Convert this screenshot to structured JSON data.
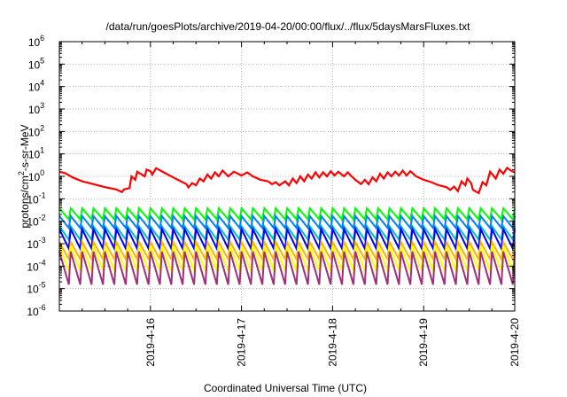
{
  "chart_data": {
    "type": "line",
    "title": "/data/run/goesPlots/archive/2019-04-20/00:00/flux/../flux/5daysMarsFluxes.txt",
    "xlabel": "Coordinated Universal Time (UTC)",
    "ylabel": {
      "prefix": "protons/cm",
      "sup": "2",
      "suffix": "-s-sr-MeV"
    },
    "yscale": "log",
    "ylim": [
      1e-06,
      1000000.0
    ],
    "xlim": [
      "2019-04-15T00:00",
      "2019-04-20T00:00"
    ],
    "x_ticks": [
      "2019-4-16",
      "2019-4-17",
      "2019-4-18",
      "2019-4-19",
      "2019-4-20"
    ],
    "y_ticks": [
      {
        "base": "10",
        "exp": "-6"
      },
      {
        "base": "10",
        "exp": "-5"
      },
      {
        "base": "10",
        "exp": "-4"
      },
      {
        "base": "10",
        "exp": "-3"
      },
      {
        "base": "10",
        "exp": "-2"
      },
      {
        "base": "10",
        "exp": "-1"
      },
      {
        "base": "10",
        "exp": "0"
      },
      {
        "base": "10",
        "exp": "1"
      },
      {
        "base": "10",
        "exp": "2"
      },
      {
        "base": "10",
        "exp": "3"
      },
      {
        "base": "10",
        "exp": "4"
      },
      {
        "base": "10",
        "exp": "5"
      },
      {
        "base": "10",
        "exp": "6"
      }
    ],
    "grid": true,
    "legend": "none",
    "series": [
      {
        "color": "#ff0000",
        "points": [
          [
            "2019-04-15T00:00",
            1.6
          ],
          [
            "2019-04-15T01:30",
            1.4
          ],
          [
            "2019-04-15T03:30",
            0.9
          ],
          [
            "2019-04-15T06:00",
            0.6
          ],
          [
            "2019-04-15T09:00",
            0.45
          ],
          [
            "2019-04-15T12:00",
            0.33
          ],
          [
            "2019-04-15T15:00",
            0.26
          ],
          [
            "2019-04-15T16:30",
            0.2
          ],
          [
            "2019-04-15T17:00",
            0.26
          ],
          [
            "2019-04-15T18:30",
            0.3
          ],
          [
            "2019-04-15T19:00",
            1.0
          ],
          [
            "2019-04-15T20:00",
            0.7
          ],
          [
            "2019-04-15T20:30",
            1.6
          ],
          [
            "2019-04-15T22:30",
            1.0
          ],
          [
            "2019-04-15T23:00",
            2.0
          ],
          [
            "2019-04-16T00:00",
            1.7
          ],
          [
            "2019-04-16T00:30",
            1.2
          ],
          [
            "2019-04-16T01:30",
            2.3
          ],
          [
            "2019-04-16T03:30",
            1.5
          ],
          [
            "2019-04-16T06:00",
            0.9
          ],
          [
            "2019-04-16T08:00",
            0.6
          ],
          [
            "2019-04-16T09:30",
            0.45
          ],
          [
            "2019-04-16T10:00",
            0.32
          ],
          [
            "2019-04-16T11:00",
            0.5
          ],
          [
            "2019-04-16T12:00",
            0.4
          ],
          [
            "2019-04-16T13:00",
            0.8
          ],
          [
            "2019-04-16T14:00",
            0.6
          ],
          [
            "2019-04-16T15:00",
            1.2
          ],
          [
            "2019-04-16T16:00",
            0.8
          ],
          [
            "2019-04-16T17:00",
            1.5
          ],
          [
            "2019-04-16T18:00",
            1.0
          ],
          [
            "2019-04-16T19:00",
            1.8
          ],
          [
            "2019-04-16T20:30",
            1.0
          ],
          [
            "2019-04-16T22:00",
            1.6
          ],
          [
            "2019-04-17T00:00",
            1.1
          ],
          [
            "2019-04-17T01:30",
            1.5
          ],
          [
            "2019-04-17T03:00",
            1.0
          ],
          [
            "2019-04-17T05:00",
            0.7
          ],
          [
            "2019-04-17T07:00",
            0.6
          ],
          [
            "2019-04-17T08:00",
            0.45
          ],
          [
            "2019-04-17T09:00",
            0.55
          ],
          [
            "2019-04-17T10:00",
            0.4
          ],
          [
            "2019-04-17T11:30",
            0.6
          ],
          [
            "2019-04-17T12:30",
            0.4
          ],
          [
            "2019-04-17T13:30",
            0.8
          ],
          [
            "2019-04-17T14:30",
            0.5
          ],
          [
            "2019-04-17T15:30",
            1.0
          ],
          [
            "2019-04-17T16:30",
            0.6
          ],
          [
            "2019-04-17T17:30",
            1.2
          ],
          [
            "2019-04-17T18:30",
            0.8
          ],
          [
            "2019-04-17T19:30",
            1.5
          ],
          [
            "2019-04-17T20:30",
            0.9
          ],
          [
            "2019-04-17T21:30",
            1.5
          ],
          [
            "2019-04-17T22:30",
            1.0
          ],
          [
            "2019-04-17T23:30",
            1.7
          ],
          [
            "2019-04-18T00:30",
            1.1
          ],
          [
            "2019-04-18T01:30",
            1.6
          ],
          [
            "2019-04-18T03:00",
            1.0
          ],
          [
            "2019-04-18T04:00",
            1.5
          ],
          [
            "2019-04-18T05:00",
            1.0
          ],
          [
            "2019-04-18T06:00",
            0.7
          ],
          [
            "2019-04-18T07:30",
            0.45
          ],
          [
            "2019-04-18T08:30",
            0.7
          ],
          [
            "2019-04-18T09:30",
            0.45
          ],
          [
            "2019-04-18T10:30",
            0.9
          ],
          [
            "2019-04-18T11:30",
            0.6
          ],
          [
            "2019-04-18T12:30",
            1.3
          ],
          [
            "2019-04-18T13:30",
            0.8
          ],
          [
            "2019-04-18T14:30",
            1.5
          ],
          [
            "2019-04-18T15:30",
            1.0
          ],
          [
            "2019-04-18T16:30",
            1.6
          ],
          [
            "2019-04-18T17:30",
            1.1
          ],
          [
            "2019-04-18T18:30",
            1.8
          ],
          [
            "2019-04-18T19:30",
            1.1
          ],
          [
            "2019-04-18T20:30",
            1.7
          ],
          [
            "2019-04-18T22:00",
            1.0
          ],
          [
            "2019-04-19T00:00",
            0.7
          ],
          [
            "2019-04-19T02:00",
            0.55
          ],
          [
            "2019-04-19T04:00",
            0.4
          ],
          [
            "2019-04-19T06:00",
            0.33
          ],
          [
            "2019-04-19T07:00",
            0.25
          ],
          [
            "2019-04-19T08:00",
            0.35
          ],
          [
            "2019-04-19T09:00",
            0.22
          ],
          [
            "2019-04-19T10:00",
            0.6
          ],
          [
            "2019-04-19T11:00",
            0.4
          ],
          [
            "2019-04-19T11:30",
            0.8
          ],
          [
            "2019-04-19T12:30",
            0.5
          ],
          [
            "2019-04-19T13:00",
            0.25
          ],
          [
            "2019-04-19T14:30",
            0.18
          ],
          [
            "2019-04-19T15:30",
            0.55
          ],
          [
            "2019-04-19T16:30",
            0.4
          ],
          [
            "2019-04-19T17:30",
            1.6
          ],
          [
            "2019-04-19T19:00",
            0.8
          ],
          [
            "2019-04-19T20:00",
            2.0
          ],
          [
            "2019-04-19T21:00",
            1.3
          ],
          [
            "2019-04-19T22:00",
            2.4
          ],
          [
            "2019-04-19T23:00",
            1.8
          ],
          [
            "2019-04-20T00:00",
            1.5
          ]
        ]
      },
      {
        "color": "#00ff00",
        "base": 0.012,
        "peak": 0.038
      },
      {
        "color": "#0080ff",
        "base": 0.005,
        "peak": 0.017
      },
      {
        "color": "#00c0c0",
        "base": 0.0015,
        "peak": 0.006
      },
      {
        "color": "#0000ff",
        "base": 0.0006,
        "peak": 0.0045
      },
      {
        "color": "#ffb000",
        "base": 0.0002,
        "peak": 0.0012
      },
      {
        "color": "#ffff00",
        "base": 6e-05,
        "peak": 0.0008
      },
      {
        "color": "#a0307a",
        "base": 1.5e-05,
        "peak": 0.00045
      }
    ]
  }
}
